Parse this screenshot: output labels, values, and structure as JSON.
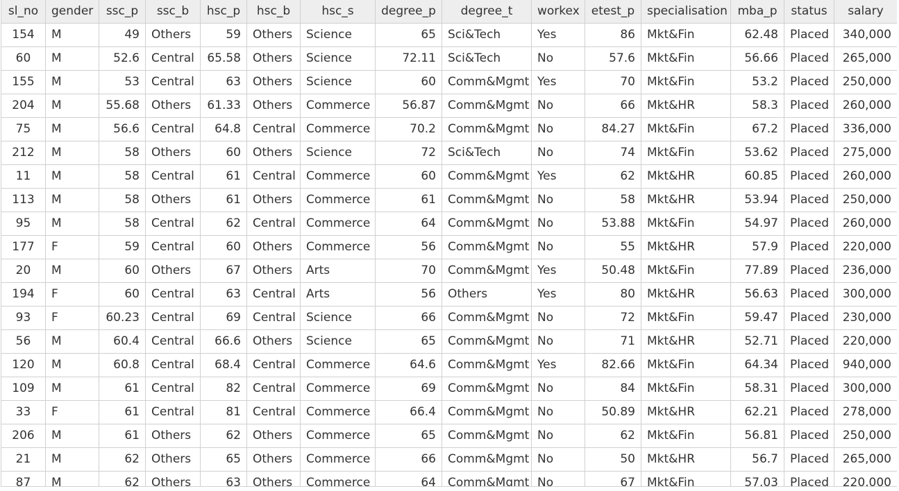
{
  "table": {
    "columns": [
      {
        "key": "sl_no",
        "label": "sl_no",
        "align": "id"
      },
      {
        "key": "gender",
        "label": "gender",
        "align": "txt"
      },
      {
        "key": "ssc_p",
        "label": "ssc_p",
        "align": "num"
      },
      {
        "key": "ssc_b",
        "label": "ssc_b",
        "align": "txt"
      },
      {
        "key": "hsc_p",
        "label": "hsc_p",
        "align": "num"
      },
      {
        "key": "hsc_b",
        "label": "hsc_b",
        "align": "txt"
      },
      {
        "key": "hsc_s",
        "label": "hsc_s",
        "align": "txt"
      },
      {
        "key": "degree_p",
        "label": "degree_p",
        "align": "num"
      },
      {
        "key": "degree_t",
        "label": "degree_t",
        "align": "txt"
      },
      {
        "key": "workex",
        "label": "workex",
        "align": "txt"
      },
      {
        "key": "etest_p",
        "label": "etest_p",
        "align": "num"
      },
      {
        "key": "specialisation",
        "label": "specialisation",
        "align": "txt"
      },
      {
        "key": "mba_p",
        "label": "mba_p",
        "align": "num"
      },
      {
        "key": "status",
        "label": "status",
        "align": "txt"
      },
      {
        "key": "salary",
        "label": "salary",
        "align": "num"
      }
    ],
    "rows": [
      [
        "154",
        "M",
        "49",
        "Others",
        "59",
        "Others",
        "Science",
        "65",
        "Sci&Tech",
        "Yes",
        "86",
        "Mkt&Fin",
        "62.48",
        "Placed",
        "340,000"
      ],
      [
        "60",
        "M",
        "52.6",
        "Central",
        "65.58",
        "Others",
        "Science",
        "72.11",
        "Sci&Tech",
        "No",
        "57.6",
        "Mkt&Fin",
        "56.66",
        "Placed",
        "265,000"
      ],
      [
        "155",
        "M",
        "53",
        "Central",
        "63",
        "Others",
        "Science",
        "60",
        "Comm&Mgmt",
        "Yes",
        "70",
        "Mkt&Fin",
        "53.2",
        "Placed",
        "250,000"
      ],
      [
        "204",
        "M",
        "55.68",
        "Others",
        "61.33",
        "Others",
        "Commerce",
        "56.87",
        "Comm&Mgmt",
        "No",
        "66",
        "Mkt&HR",
        "58.3",
        "Placed",
        "260,000"
      ],
      [
        "75",
        "M",
        "56.6",
        "Central",
        "64.8",
        "Central",
        "Commerce",
        "70.2",
        "Comm&Mgmt",
        "No",
        "84.27",
        "Mkt&Fin",
        "67.2",
        "Placed",
        "336,000"
      ],
      [
        "212",
        "M",
        "58",
        "Others",
        "60",
        "Others",
        "Science",
        "72",
        "Sci&Tech",
        "No",
        "74",
        "Mkt&Fin",
        "53.62",
        "Placed",
        "275,000"
      ],
      [
        "11",
        "M",
        "58",
        "Central",
        "61",
        "Central",
        "Commerce",
        "60",
        "Comm&Mgmt",
        "Yes",
        "62",
        "Mkt&HR",
        "60.85",
        "Placed",
        "260,000"
      ],
      [
        "113",
        "M",
        "58",
        "Others",
        "61",
        "Others",
        "Commerce",
        "61",
        "Comm&Mgmt",
        "No",
        "58",
        "Mkt&HR",
        "53.94",
        "Placed",
        "250,000"
      ],
      [
        "95",
        "M",
        "58",
        "Central",
        "62",
        "Central",
        "Commerce",
        "64",
        "Comm&Mgmt",
        "No",
        "53.88",
        "Mkt&Fin",
        "54.97",
        "Placed",
        "260,000"
      ],
      [
        "177",
        "F",
        "59",
        "Central",
        "60",
        "Others",
        "Commerce",
        "56",
        "Comm&Mgmt",
        "No",
        "55",
        "Mkt&HR",
        "57.9",
        "Placed",
        "220,000"
      ],
      [
        "20",
        "M",
        "60",
        "Others",
        "67",
        "Others",
        "Arts",
        "70",
        "Comm&Mgmt",
        "Yes",
        "50.48",
        "Mkt&Fin",
        "77.89",
        "Placed",
        "236,000"
      ],
      [
        "194",
        "F",
        "60",
        "Central",
        "63",
        "Central",
        "Arts",
        "56",
        "Others",
        "Yes",
        "80",
        "Mkt&HR",
        "56.63",
        "Placed",
        "300,000"
      ],
      [
        "93",
        "F",
        "60.23",
        "Central",
        "69",
        "Central",
        "Science",
        "66",
        "Comm&Mgmt",
        "No",
        "72",
        "Mkt&Fin",
        "59.47",
        "Placed",
        "230,000"
      ],
      [
        "56",
        "M",
        "60.4",
        "Central",
        "66.6",
        "Others",
        "Science",
        "65",
        "Comm&Mgmt",
        "No",
        "71",
        "Mkt&HR",
        "52.71",
        "Placed",
        "220,000"
      ],
      [
        "120",
        "M",
        "60.8",
        "Central",
        "68.4",
        "Central",
        "Commerce",
        "64.6",
        "Comm&Mgmt",
        "Yes",
        "82.66",
        "Mkt&Fin",
        "64.34",
        "Placed",
        "940,000"
      ],
      [
        "109",
        "M",
        "61",
        "Central",
        "82",
        "Central",
        "Commerce",
        "69",
        "Comm&Mgmt",
        "No",
        "84",
        "Mkt&Fin",
        "58.31",
        "Placed",
        "300,000"
      ],
      [
        "33",
        "F",
        "61",
        "Central",
        "81",
        "Central",
        "Commerce",
        "66.4",
        "Comm&Mgmt",
        "No",
        "50.89",
        "Mkt&HR",
        "62.21",
        "Placed",
        "278,000"
      ],
      [
        "206",
        "M",
        "61",
        "Others",
        "62",
        "Others",
        "Commerce",
        "65",
        "Comm&Mgmt",
        "No",
        "62",
        "Mkt&Fin",
        "56.81",
        "Placed",
        "250,000"
      ],
      [
        "21",
        "M",
        "62",
        "Others",
        "65",
        "Others",
        "Commerce",
        "66",
        "Comm&Mgmt",
        "No",
        "50",
        "Mkt&HR",
        "56.7",
        "Placed",
        "265,000"
      ],
      [
        "87",
        "M",
        "62",
        "Others",
        "63",
        "Others",
        "Commerce",
        "64",
        "Comm&Mgmt",
        "No",
        "67",
        "Mkt&Fin",
        "57.03",
        "Placed",
        "220,000"
      ]
    ]
  }
}
